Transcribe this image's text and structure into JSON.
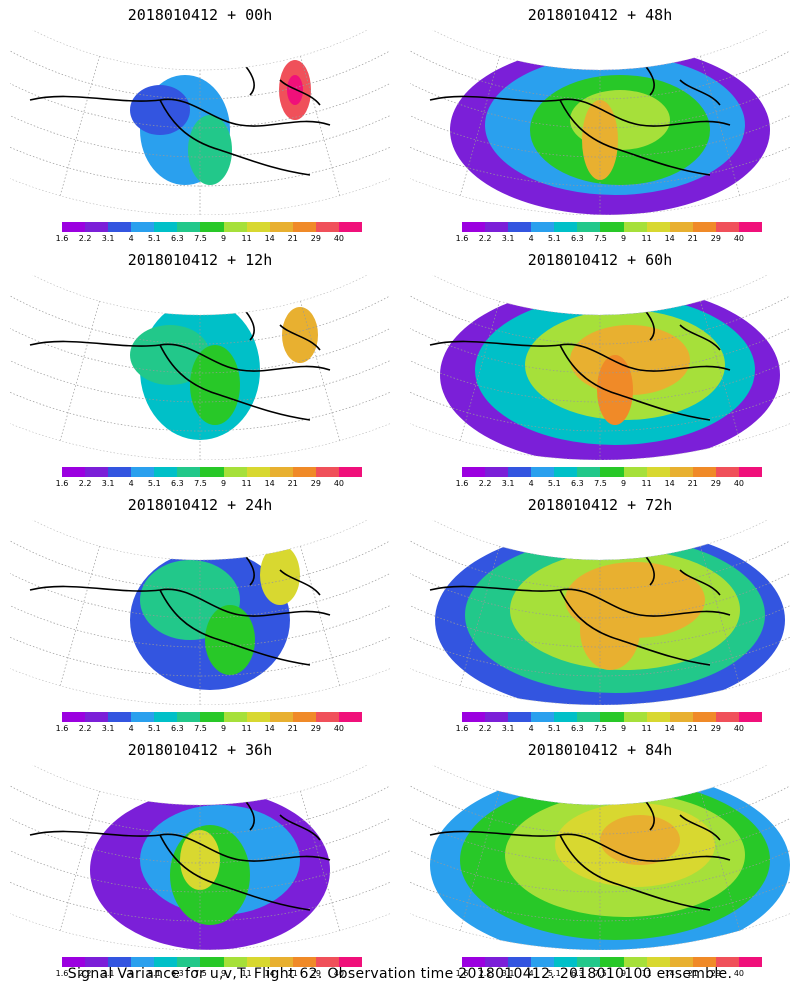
{
  "colors": [
    "#9b00e0",
    "#7b1fd8",
    "#3355e0",
    "#2aa0ee",
    "#00c0c8",
    "#22c88a",
    "#28c828",
    "#a6e03a",
    "#d8d830",
    "#e8b030",
    "#f08a28",
    "#f0505a",
    "#f0107a"
  ],
  "colorbar_labels": [
    "1.6",
    "2.2",
    "3.1",
    "4",
    "5.1",
    "6.3",
    "7.5",
    "9",
    "11",
    "14",
    "21",
    "29",
    "40"
  ],
  "panels": [
    {
      "title": "2018010412 + 00h",
      "level": 0
    },
    {
      "title": "2018010412 + 48h",
      "level": 4
    },
    {
      "title": "2018010412 + 12h",
      "level": 1
    },
    {
      "title": "2018010412 + 60h",
      "level": 5
    },
    {
      "title": "2018010412 + 24h",
      "level": 2
    },
    {
      "title": "2018010412 + 72h",
      "level": 6
    },
    {
      "title": "2018010412 + 36h",
      "level": 3
    },
    {
      "title": "2018010412 + 84h",
      "level": 7
    }
  ],
  "footer": "Signal Variance for u,v,T. Flight 62. Observation time 2018010412. 2018010100 ensemble."
}
